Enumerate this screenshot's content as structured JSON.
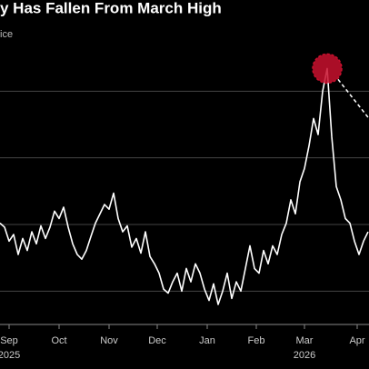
{
  "chart_data": {
    "type": "line",
    "title": "y Has Fallen From March High",
    "subtitle": "ice",
    "series": [
      {
        "color": "#ffffff",
        "values": [
          2.02,
          1.96,
          1.75,
          1.85,
          1.55,
          1.79,
          1.61,
          1.89,
          1.71,
          1.98,
          1.79,
          1.96,
          2.2,
          2.09,
          2.26,
          1.96,
          1.71,
          1.55,
          1.48,
          1.61,
          1.82,
          2.02,
          2.16,
          2.3,
          2.23,
          2.47,
          2.09,
          1.89,
          1.98,
          1.66,
          1.79,
          1.57,
          1.89,
          1.52,
          1.41,
          1.27,
          1.03,
          0.97,
          1.14,
          1.27,
          1.0,
          1.34,
          1.14,
          1.41,
          1.27,
          1.03,
          0.86,
          1.11,
          0.8,
          1.0,
          1.27,
          0.89,
          1.14,
          1.0,
          1.34,
          1.68,
          1.34,
          1.27,
          1.61,
          1.41,
          1.68,
          1.55,
          1.85,
          2.02,
          2.37,
          2.16,
          2.64,
          2.84,
          3.18,
          3.59,
          3.35,
          4.0,
          4.34,
          3.32,
          2.57,
          2.37,
          2.09,
          2.02,
          1.75,
          1.55,
          1.75,
          1.89
        ]
      }
    ],
    "xlim": [
      0,
      81
    ],
    "xticks": [
      {
        "value": 2,
        "label": "Sep"
      },
      {
        "value": 13,
        "label": "Oct"
      },
      {
        "value": 24,
        "label": "Nov"
      },
      {
        "value": 34.6,
        "label": "Dec"
      },
      {
        "value": 45.6,
        "label": "Jan"
      },
      {
        "value": 56.4,
        "label": "Feb"
      },
      {
        "value": 67,
        "label": "Mar"
      },
      {
        "value": 78.6,
        "label": "Apr"
      }
    ],
    "year_labels": [
      {
        "value": 2,
        "label": "2025"
      },
      {
        "value": 67,
        "label": "2026"
      }
    ],
    "ylim": [
      0.5,
      5
    ],
    "yticks": [
      1,
      2,
      3,
      4
    ],
    "grid": true,
    "highlight_index": 72,
    "highlight_color": "#c8102e"
  }
}
